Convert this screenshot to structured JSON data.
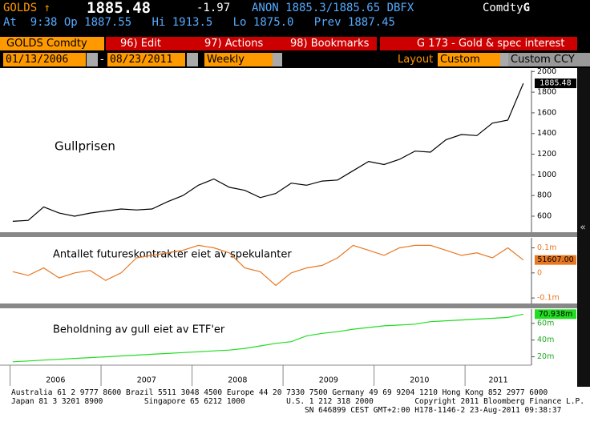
{
  "header": {
    "ticker": "GOLDS ↑",
    "price": "1885.48",
    "change": "-1.97",
    "quote": "ANON 1885.3/1885.65 DBFX",
    "market": "Comdty",
    "market_key": "G",
    "time": "At  9:38",
    "open": "Op 1887.55",
    "high": "Hi 1913.5",
    "low": "Lo 1875.0",
    "prev": "Prev 1887.45"
  },
  "toolbar": {
    "security": "GOLDS Comdty",
    "menu": [
      "96) Edit",
      "97) Actions",
      "98) Bookmarks"
    ],
    "page_title": "G 173 - Gold & spec interest"
  },
  "controls": {
    "start_date": "01/13/2006",
    "end_date": "08/23/2011",
    "period": "Weekly",
    "layout_label": "Layout",
    "layout": "Custom",
    "currency": "Custom CCY"
  },
  "chart_data": [
    {
      "type": "line",
      "title": "Gullprisen",
      "color": "#000000",
      "xlim": [
        2005.96,
        2011.73
      ],
      "ylim": [
        445,
        2010
      ],
      "yticks": [
        600,
        800,
        1000,
        1200,
        1400,
        1600,
        1800,
        2000
      ],
      "last_value": {
        "value": 1885.48,
        "label": "1885.48"
      },
      "x": [
        2006.03,
        2006.2,
        2006.37,
        2006.54,
        2006.71,
        2006.88,
        2007.05,
        2007.22,
        2007.39,
        2007.56,
        2007.73,
        2007.9,
        2008.07,
        2008.24,
        2008.41,
        2008.58,
        2008.75,
        2008.92,
        2009.09,
        2009.26,
        2009.43,
        2009.6,
        2009.77,
        2009.94,
        2010.11,
        2010.28,
        2010.45,
        2010.62,
        2010.79,
        2010.96,
        2011.13,
        2011.3,
        2011.47,
        2011.64
      ],
      "values": [
        550,
        560,
        690,
        630,
        600,
        630,
        650,
        670,
        660,
        670,
        740,
        800,
        900,
        960,
        880,
        850,
        780,
        820,
        920,
        900,
        940,
        950,
        1040,
        1130,
        1100,
        1150,
        1230,
        1220,
        1340,
        1390,
        1380,
        1500,
        1530,
        1885.48
      ]
    },
    {
      "type": "line",
      "title": "Antallet futureskontrakter eiet av spekulanter",
      "color": "#e87722",
      "xlim": [
        2005.96,
        2011.73
      ],
      "ylim": [
        -122000,
        140000
      ],
      "yticks": [
        {
          "value": 100000,
          "label": "0.1m"
        },
        0,
        {
          "value": -100000,
          "label": "-0.1m"
        }
      ],
      "last_value": {
        "value": 51607,
        "label": "51607.00"
      },
      "x": [
        2006.03,
        2006.2,
        2006.37,
        2006.54,
        2006.71,
        2006.88,
        2007.05,
        2007.22,
        2007.39,
        2007.56,
        2007.73,
        2007.9,
        2008.07,
        2008.24,
        2008.41,
        2008.58,
        2008.75,
        2008.92,
        2009.09,
        2009.26,
        2009.43,
        2009.6,
        2009.77,
        2009.94,
        2010.11,
        2010.28,
        2010.45,
        2010.62,
        2010.79,
        2010.96,
        2011.13,
        2011.3,
        2011.47,
        2011.64
      ],
      "values": [
        5000,
        -10000,
        20000,
        -20000,
        0,
        10000,
        -30000,
        0,
        60000,
        70000,
        80000,
        90000,
        110000,
        100000,
        80000,
        20000,
        5000,
        -50000,
        0,
        20000,
        30000,
        60000,
        110000,
        90000,
        70000,
        100000,
        110000,
        110000,
        90000,
        70000,
        80000,
        60000,
        100000,
        51607
      ]
    },
    {
      "type": "line",
      "title": "Beholdning av gull eiet av ETF'er",
      "color": "#22dd22",
      "xlim": [
        2005.96,
        2011.73
      ],
      "ylim": [
        10,
        77
      ],
      "yticks": [
        {
          "value": 20,
          "label": "20m"
        },
        {
          "value": 40,
          "label": "40m"
        },
        {
          "value": 60,
          "label": "60m"
        }
      ],
      "xticks": [
        {
          "value": 2006,
          "label": "2006"
        },
        {
          "value": 2007,
          "label": "2007"
        },
        {
          "value": 2008,
          "label": "2008"
        },
        {
          "value": 2009,
          "label": "2009"
        },
        {
          "value": 2010,
          "label": "2010"
        },
        {
          "value": 2011,
          "label": "2011"
        }
      ],
      "last_value": {
        "value": 70.938,
        "label": "70.938m"
      },
      "x": [
        2006.03,
        2006.2,
        2006.37,
        2006.54,
        2006.71,
        2006.88,
        2007.05,
        2007.22,
        2007.39,
        2007.56,
        2007.73,
        2007.9,
        2008.07,
        2008.24,
        2008.41,
        2008.58,
        2008.75,
        2008.92,
        2009.09,
        2009.26,
        2009.43,
        2009.6,
        2009.77,
        2009.94,
        2010.11,
        2010.28,
        2010.45,
        2010.62,
        2010.79,
        2010.96,
        2011.13,
        2011.3,
        2011.47,
        2011.64
      ],
      "values": [
        14,
        15,
        16,
        17,
        18,
        19,
        20,
        21,
        22,
        23,
        24,
        25,
        26,
        27,
        28,
        30,
        33,
        36,
        38,
        45,
        48,
        50,
        53,
        55,
        57,
        58,
        59,
        62,
        63,
        64,
        65,
        66,
        67,
        70.938
      ]
    }
  ],
  "footer": {
    "lines": [
      "Australia 61 2 9777 8600 Brazil 5511 3048 4500 Europe 44 20 7330 7500 Germany 49 69 9204 1210 Hong Kong 852 2977 6000",
      "Japan 81 3 3201 8900         Singapore 65 6212 1000         U.S. 1 212 318 2000         Copyright 2011 Bloomberg Finance L.P.",
      "SN 646899 CEST GMT+2:00 H178-1146-2 23-Aug-2011 09:38:37"
    ]
  }
}
